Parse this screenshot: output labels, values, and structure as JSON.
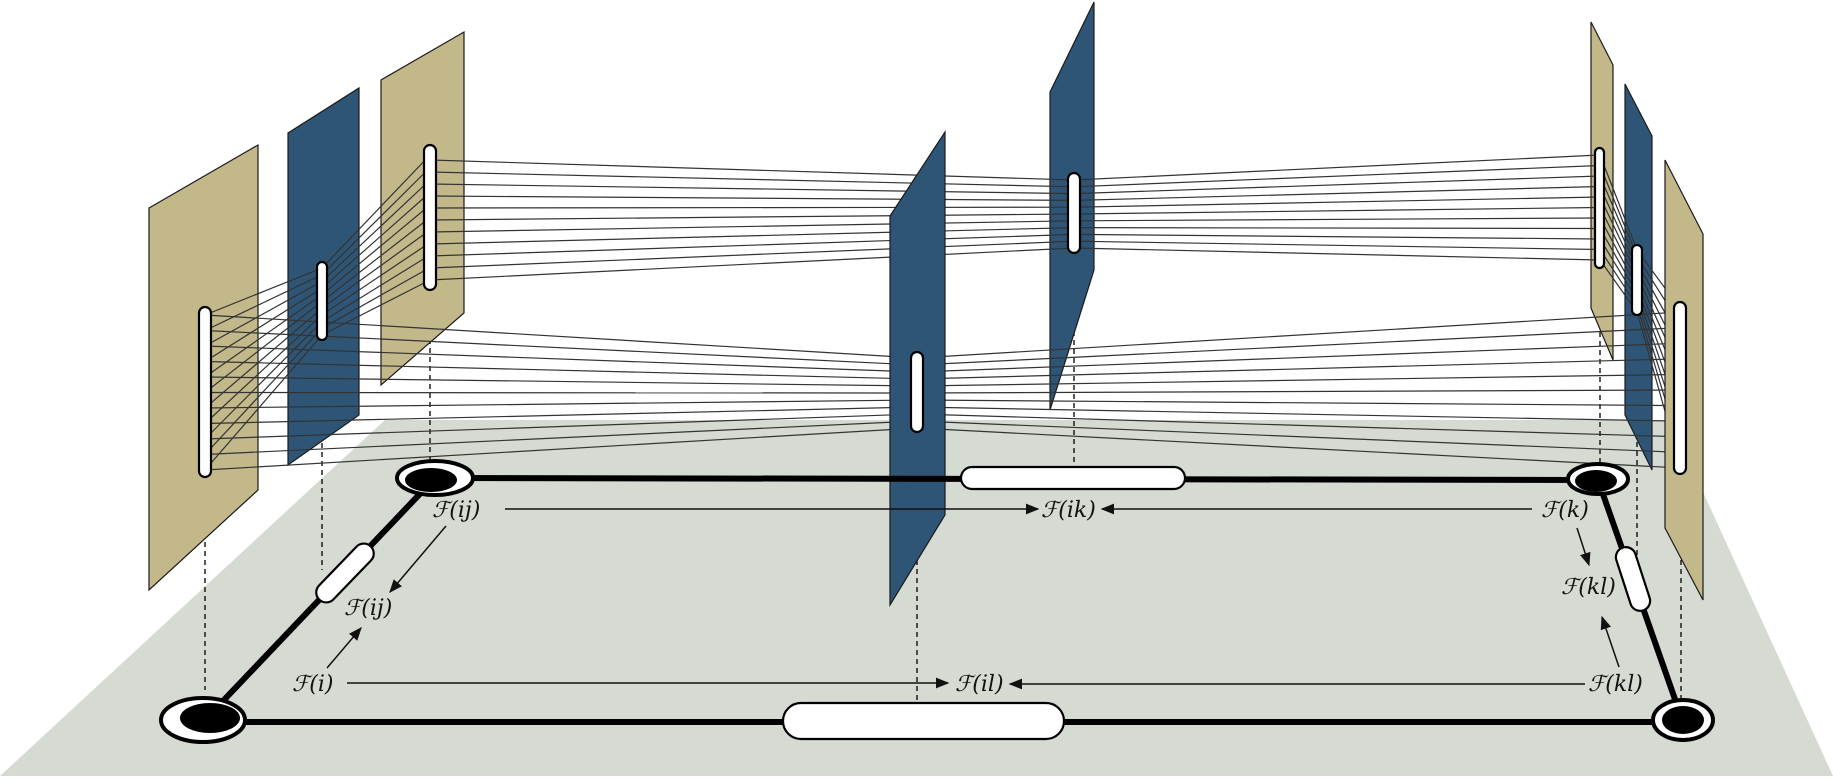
{
  "colors": {
    "ground": "#d5dad2",
    "tan_plane": "#c2b88a",
    "blue_plane": "#2e5576",
    "edge": "#000000",
    "slot": "#ffffff"
  },
  "labels": {
    "f_ij_top": "ℱ(ij)",
    "f_ij_mid": "ℱ(ij)",
    "f_i": "ℱ(i)",
    "f_ik": "ℱ(ik)",
    "f_il": "ℱ(il)",
    "f_k": "ℱ(k)",
    "f_kl_mid": "ℱ(kl)",
    "f_kl_bottom": "ℱ(kl)"
  }
}
